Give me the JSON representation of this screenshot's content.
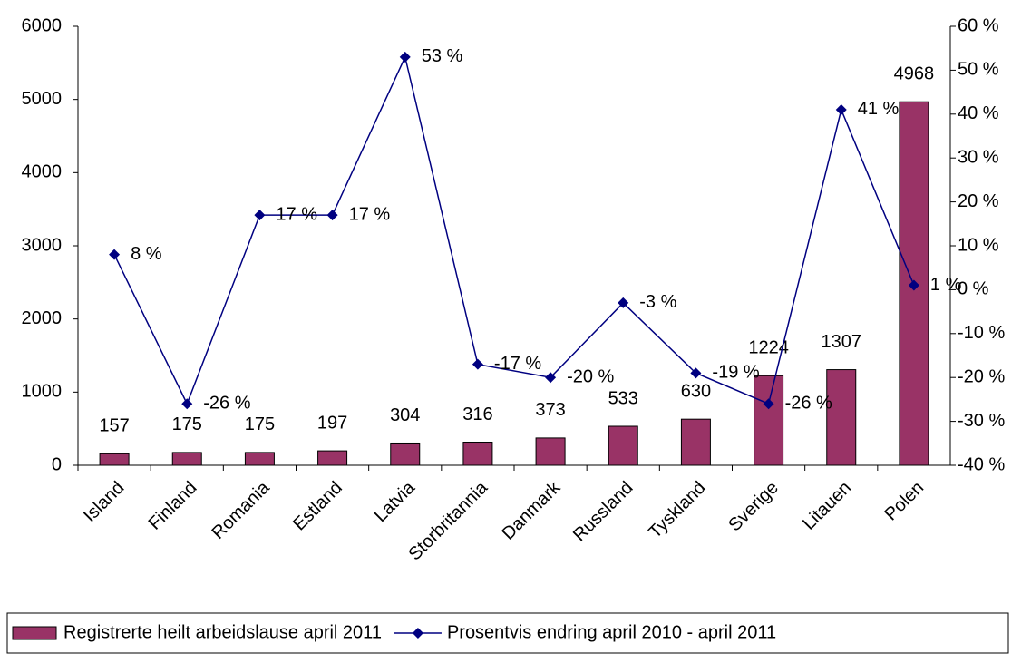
{
  "chart_data": {
    "type": "bar-line",
    "categories": [
      "Island",
      "Finland",
      "Romania",
      "Estland",
      "Latvia",
      "Storbritannia",
      "Danmark",
      "Russland",
      "Tyskland",
      "Sverige",
      "Litauen",
      "Polen"
    ],
    "series": [
      {
        "name": "Registrerte heilt arbeidslause april 2011",
        "type": "bar",
        "color": "#993366",
        "values": [
          157,
          175,
          175,
          197,
          304,
          316,
          373,
          533,
          630,
          1224,
          1307,
          4968
        ]
      },
      {
        "name": "Prosentvis endring april  2010 - april 2011",
        "type": "line",
        "color": "#000080",
        "axis": "y2",
        "values": [
          8,
          -26,
          17,
          17,
          53,
          -17,
          -20,
          -3,
          -19,
          -26,
          41,
          1
        ],
        "value_labels": [
          "8 %",
          "-26 %",
          "17 %",
          "17 %",
          "53 %",
          "-17 %",
          "-20 %",
          "-3 %",
          "-19 %",
          "-26 %",
          "41 %",
          "1 %"
        ]
      }
    ],
    "ylim": [
      0,
      6000
    ],
    "yticks": [
      0,
      1000,
      2000,
      3000,
      4000,
      5000,
      6000
    ],
    "y2lim": [
      -40,
      60
    ],
    "y2ticks": [
      {
        "value": -40,
        "label": "-40 %"
      },
      {
        "value": -30,
        "label": "-30 %"
      },
      {
        "value": -20,
        "label": "-20 %"
      },
      {
        "value": -10,
        "label": "-10 %"
      },
      {
        "value": 0,
        "label": "0 %"
      },
      {
        "value": 10,
        "label": "10 %"
      },
      {
        "value": 20,
        "label": "20 %"
      },
      {
        "value": 30,
        "label": "30 %"
      },
      {
        "value": 40,
        "label": "40 %"
      },
      {
        "value": 50,
        "label": "50 %"
      },
      {
        "value": 60,
        "label": "60 %"
      }
    ],
    "grid": false,
    "legend": "bottom"
  }
}
